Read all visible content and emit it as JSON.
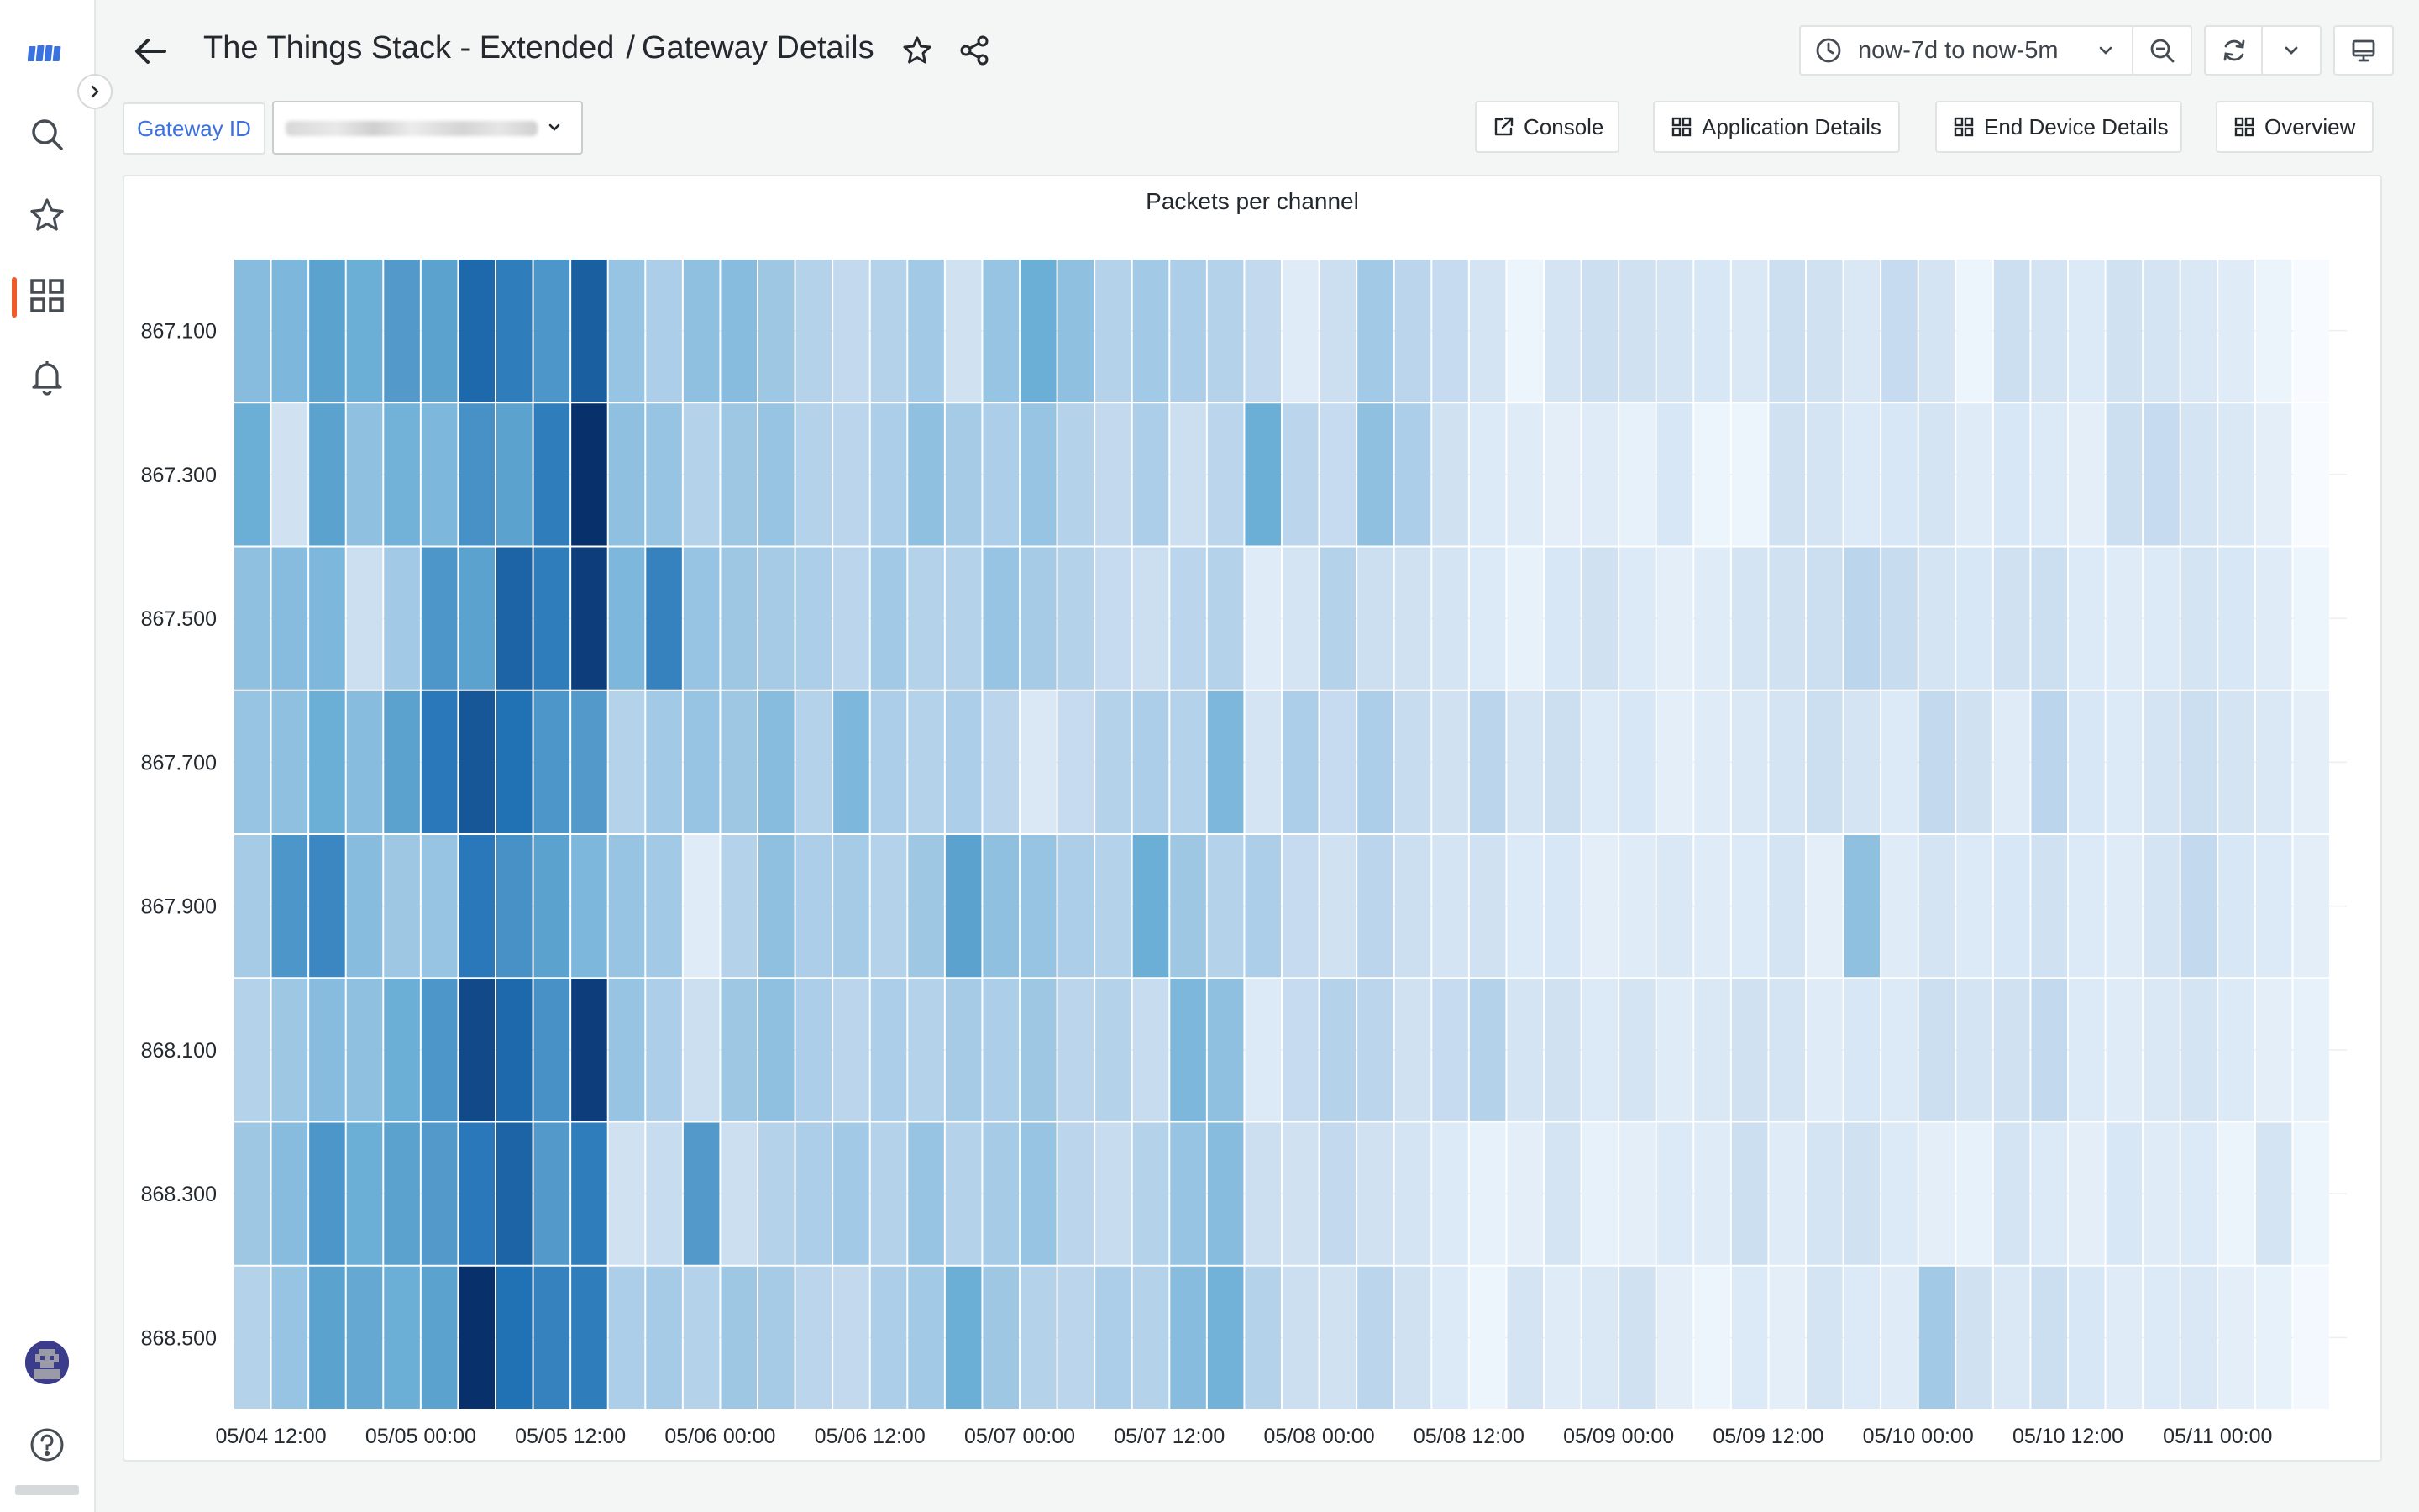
{
  "header": {
    "title": "The Things Stack - Extended",
    "separator": "/",
    "subtitle": "Gateway Details"
  },
  "time_range": {
    "label": "now-7d to now-5m"
  },
  "variable": {
    "label": "Gateway ID",
    "value": ""
  },
  "links": [
    {
      "label": "Console",
      "icon": "external-link-icon"
    },
    {
      "label": "Application Details",
      "icon": "dashboard-grid-icon"
    },
    {
      "label": "End Device Details",
      "icon": "dashboard-grid-icon"
    },
    {
      "label": "Overview",
      "icon": "dashboard-grid-icon"
    }
  ],
  "sidebar": {
    "items": [
      "logo-icon",
      "search-icon",
      "star-icon",
      "dashboards-icon",
      "bell-icon"
    ],
    "active": "dashboards-icon",
    "footer": [
      "avatar",
      "help-icon"
    ]
  },
  "colors": {
    "low": "#f7fbff",
    "high": "#08306b",
    "accent": "#f05a28",
    "link": "#3c71e0"
  },
  "chart_data": {
    "type": "heatmap",
    "title": "Packets per channel",
    "xlabel": "",
    "ylabel": "",
    "color_scale": "Blues",
    "x_tick_labels": [
      "05/04 12:00",
      "05/05 00:00",
      "05/05 12:00",
      "05/06 00:00",
      "05/06 12:00",
      "05/07 00:00",
      "05/07 12:00",
      "05/08 00:00",
      "05/08 12:00",
      "05/09 00:00",
      "05/09 12:00",
      "05/10 00:00",
      "05/10 12:00",
      "05/11 00:00"
    ],
    "y_categories": [
      "867.100",
      "867.300",
      "867.500",
      "867.700",
      "867.900",
      "868.100",
      "868.300",
      "868.500"
    ],
    "bucket_hours": 3,
    "first_bucket_offset_hours": -3,
    "value_range": [
      0,
      1
    ],
    "values": [
      [
        0.42,
        0.45,
        0.55,
        0.5,
        0.58,
        0.55,
        0.78,
        0.7,
        0.6,
        0.82,
        0.38,
        0.32,
        0.4,
        0.42,
        0.36,
        0.3,
        0.26,
        0.3,
        0.35,
        0.2,
        0.38,
        0.5,
        0.4,
        0.3,
        0.35,
        0.32,
        0.3,
        0.26,
        0.12,
        0.22,
        0.35,
        0.28,
        0.25,
        0.18,
        0.05,
        0.18,
        0.22,
        0.2,
        0.18,
        0.16,
        0.15,
        0.22,
        0.2,
        0.15,
        0.25,
        0.18,
        0.05,
        0.22,
        0.18,
        0.14,
        0.2,
        0.18,
        0.15,
        0.12,
        0.06,
        0.0
      ],
      [
        0.5,
        0.2,
        0.55,
        0.4,
        0.48,
        0.45,
        0.62,
        0.55,
        0.7,
        1.0,
        0.4,
        0.38,
        0.3,
        0.36,
        0.38,
        0.3,
        0.28,
        0.32,
        0.4,
        0.34,
        0.32,
        0.38,
        0.3,
        0.26,
        0.32,
        0.22,
        0.28,
        0.5,
        0.28,
        0.25,
        0.4,
        0.32,
        0.2,
        0.14,
        0.12,
        0.1,
        0.12,
        0.08,
        0.16,
        0.05,
        0.05,
        0.2,
        0.18,
        0.14,
        0.16,
        0.18,
        0.12,
        0.16,
        0.14,
        0.1,
        0.22,
        0.25,
        0.18,
        0.15,
        0.1,
        0.0
      ],
      [
        0.4,
        0.42,
        0.45,
        0.22,
        0.35,
        0.6,
        0.55,
        0.8,
        0.7,
        0.95,
        0.45,
        0.68,
        0.38,
        0.36,
        0.34,
        0.32,
        0.28,
        0.35,
        0.3,
        0.3,
        0.38,
        0.34,
        0.3,
        0.25,
        0.22,
        0.28,
        0.3,
        0.12,
        0.18,
        0.3,
        0.22,
        0.2,
        0.18,
        0.14,
        0.08,
        0.16,
        0.2,
        0.14,
        0.1,
        0.12,
        0.18,
        0.2,
        0.22,
        0.28,
        0.24,
        0.18,
        0.16,
        0.2,
        0.22,
        0.14,
        0.12,
        0.14,
        0.18,
        0.16,
        0.12,
        0.05
      ],
      [
        0.38,
        0.4,
        0.5,
        0.42,
        0.55,
        0.72,
        0.85,
        0.75,
        0.6,
        0.58,
        0.3,
        0.35,
        0.38,
        0.36,
        0.42,
        0.3,
        0.45,
        0.32,
        0.3,
        0.32,
        0.28,
        0.15,
        0.25,
        0.3,
        0.32,
        0.3,
        0.45,
        0.18,
        0.32,
        0.25,
        0.32,
        0.24,
        0.2,
        0.28,
        0.18,
        0.22,
        0.14,
        0.16,
        0.1,
        0.12,
        0.15,
        0.18,
        0.22,
        0.18,
        0.14,
        0.26,
        0.2,
        0.12,
        0.28,
        0.16,
        0.14,
        0.18,
        0.22,
        0.18,
        0.15,
        0.1
      ],
      [
        0.34,
        0.6,
        0.66,
        0.42,
        0.36,
        0.38,
        0.72,
        0.62,
        0.55,
        0.45,
        0.38,
        0.35,
        0.12,
        0.3,
        0.4,
        0.32,
        0.34,
        0.3,
        0.36,
        0.55,
        0.4,
        0.38,
        0.32,
        0.3,
        0.5,
        0.36,
        0.3,
        0.32,
        0.25,
        0.2,
        0.28,
        0.22,
        0.18,
        0.2,
        0.14,
        0.16,
        0.1,
        0.12,
        0.15,
        0.12,
        0.14,
        0.18,
        0.1,
        0.4,
        0.12,
        0.18,
        0.14,
        0.16,
        0.2,
        0.14,
        0.12,
        0.18,
        0.26,
        0.16,
        0.14,
        0.1
      ],
      [
        0.3,
        0.36,
        0.42,
        0.4,
        0.5,
        0.6,
        0.9,
        0.78,
        0.62,
        0.95,
        0.38,
        0.32,
        0.22,
        0.36,
        0.4,
        0.32,
        0.28,
        0.32,
        0.3,
        0.34,
        0.32,
        0.36,
        0.28,
        0.3,
        0.24,
        0.45,
        0.4,
        0.14,
        0.25,
        0.3,
        0.28,
        0.2,
        0.25,
        0.3,
        0.18,
        0.2,
        0.14,
        0.18,
        0.12,
        0.15,
        0.2,
        0.18,
        0.12,
        0.16,
        0.14,
        0.22,
        0.18,
        0.2,
        0.26,
        0.14,
        0.12,
        0.15,
        0.18,
        0.14,
        0.1,
        0.08
      ],
      [
        0.36,
        0.42,
        0.6,
        0.5,
        0.55,
        0.58,
        0.72,
        0.8,
        0.58,
        0.7,
        0.2,
        0.24,
        0.58,
        0.22,
        0.3,
        0.32,
        0.35,
        0.3,
        0.38,
        0.3,
        0.34,
        0.38,
        0.28,
        0.24,
        0.3,
        0.38,
        0.42,
        0.22,
        0.2,
        0.26,
        0.2,
        0.18,
        0.14,
        0.08,
        0.1,
        0.18,
        0.08,
        0.1,
        0.14,
        0.12,
        0.22,
        0.12,
        0.18,
        0.2,
        0.14,
        0.1,
        0.08,
        0.18,
        0.14,
        0.1,
        0.16,
        0.12,
        0.14,
        0.06,
        0.18,
        0.05
      ],
      [
        0.3,
        0.38,
        0.55,
        0.52,
        0.5,
        0.55,
        1.0,
        0.75,
        0.68,
        0.7,
        0.32,
        0.34,
        0.3,
        0.36,
        0.34,
        0.28,
        0.26,
        0.32,
        0.35,
        0.5,
        0.36,
        0.3,
        0.28,
        0.32,
        0.3,
        0.42,
        0.48,
        0.3,
        0.22,
        0.2,
        0.28,
        0.2,
        0.14,
        0.05,
        0.18,
        0.12,
        0.15,
        0.2,
        0.1,
        0.05,
        0.14,
        0.1,
        0.18,
        0.14,
        0.12,
        0.35,
        0.2,
        0.15,
        0.22,
        0.16,
        0.12,
        0.14,
        0.15,
        0.1,
        0.08,
        0.02
      ]
    ]
  }
}
